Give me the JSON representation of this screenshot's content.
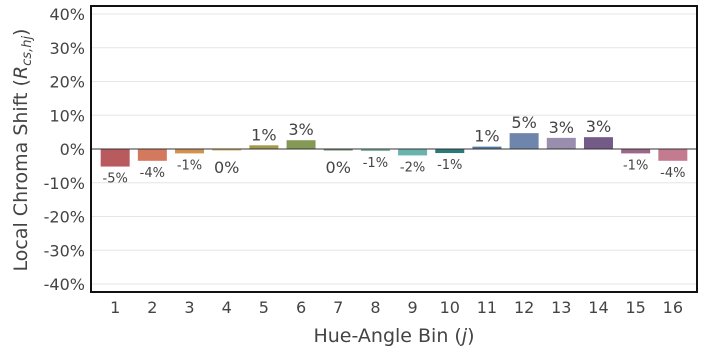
{
  "chart_data": {
    "type": "bar",
    "title": "",
    "xlabel_text": "Hue-Angle Bin (",
    "xlabel_var": "j",
    "xlabel_close": ")",
    "ylabel_text": "Local Chroma Shift (",
    "ylabel_var": "R",
    "ylabel_sub": "cs,hj",
    "ylabel_close": ")",
    "ylim": [
      -0.4,
      0.4
    ],
    "yticks": [
      -0.4,
      -0.3,
      -0.2,
      -0.1,
      0,
      0.1,
      0.2,
      0.3,
      0.4
    ],
    "ytick_labels": [
      "-40%",
      "-30%",
      "-20%",
      "-10%",
      "0%",
      "10%",
      "20%",
      "30%",
      "40%"
    ],
    "grid": true,
    "legend": "none",
    "categories": [
      "1",
      "2",
      "3",
      "4",
      "5",
      "6",
      "7",
      "8",
      "9",
      "10",
      "11",
      "12",
      "13",
      "14",
      "15",
      "16"
    ],
    "values": [
      -0.052,
      -0.035,
      -0.013,
      -0.004,
      0.011,
      0.026,
      -0.004,
      -0.006,
      -0.019,
      -0.012,
      0.007,
      0.047,
      0.033,
      0.035,
      -0.013,
      -0.035
    ],
    "value_labels": [
      "-5%",
      "-4%",
      "-1%",
      "0%",
      "1%",
      "3%",
      "0%",
      "-1%",
      "-2%",
      "-1%",
      "1%",
      "5%",
      "3%",
      "3%",
      "-1%",
      "-4%"
    ],
    "colors": [
      "#b95a5f",
      "#d4785e",
      "#d2924f",
      "#dbb05d",
      "#a59a4c",
      "#859956",
      "#6d8a70",
      "#80b9a5",
      "#6ab4ae",
      "#2b7a7a",
      "#4f78a4",
      "#6f86ac",
      "#9a8eaf",
      "#735a87",
      "#9a6788",
      "#c57b8f"
    ]
  }
}
